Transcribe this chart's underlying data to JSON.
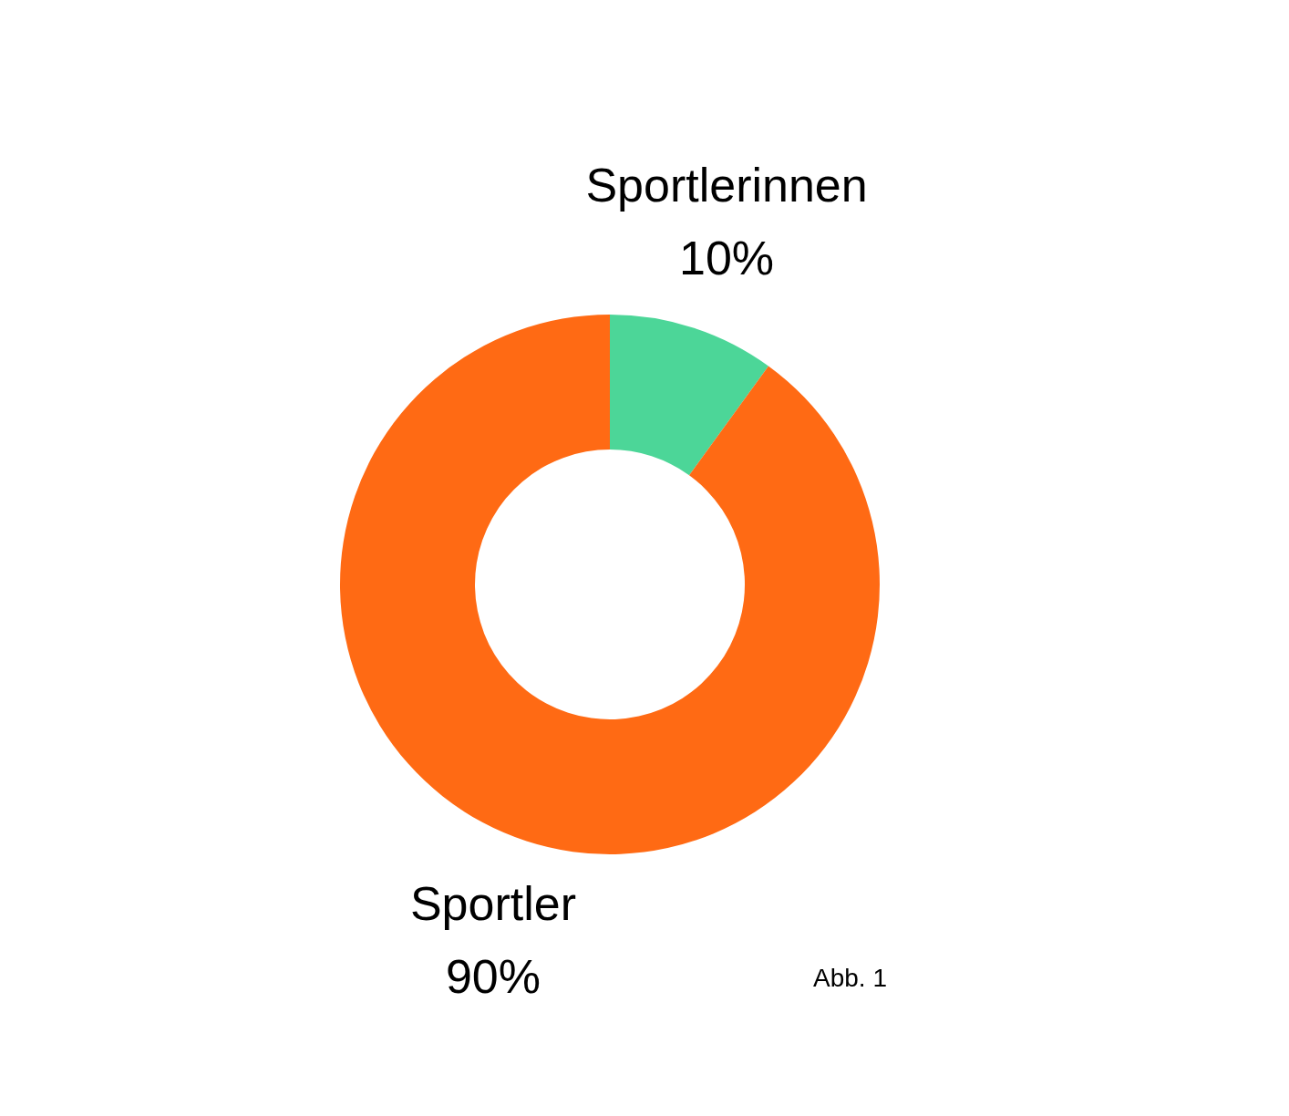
{
  "chart_data": {
    "type": "donut",
    "categories": [
      "Sportlerinnen",
      "Sportler"
    ],
    "values": [
      10,
      90
    ],
    "colors": [
      "#4cd698",
      "#ff6a14"
    ],
    "value_labels": [
      "10%",
      "90%"
    ],
    "legend": false,
    "annotations": [
      "Abb. 1"
    ]
  }
}
